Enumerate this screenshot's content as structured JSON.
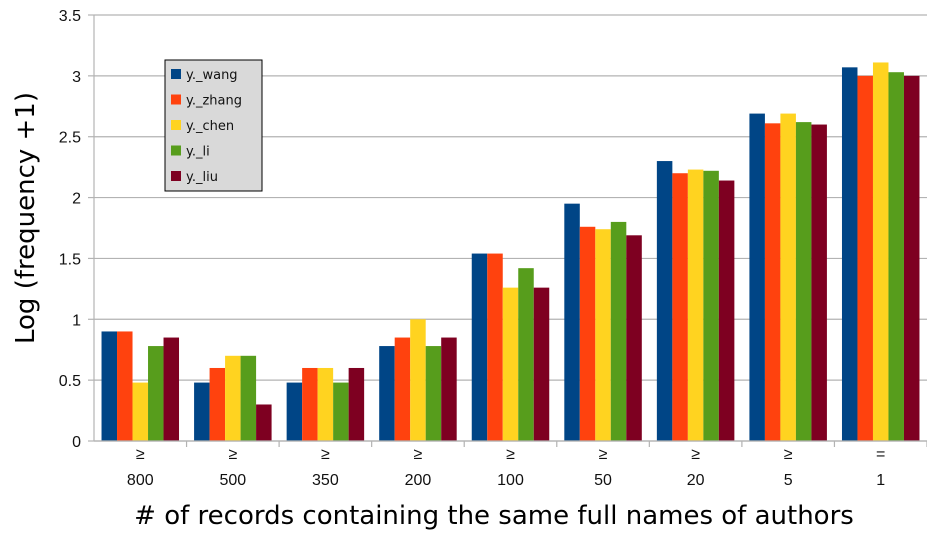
{
  "chart_data": {
    "type": "bar",
    "xlabel": "# of records containing the same full names of authors",
    "ylabel": "Log (frequency +1)",
    "ylim": [
      0,
      3.5
    ],
    "yticks": [
      "0",
      "0.5",
      "1",
      "1.5",
      "2",
      "2.5",
      "3",
      "3.5"
    ],
    "grid": "horizontal",
    "legend_position": "top-left",
    "categories": [
      {
        "symbol": "≥",
        "value": "800"
      },
      {
        "symbol": "≥",
        "value": "500"
      },
      {
        "symbol": "≥",
        "value": "350"
      },
      {
        "symbol": "≥",
        "value": "200"
      },
      {
        "symbol": "≥",
        "value": "100"
      },
      {
        "symbol": "≥",
        "value": "50"
      },
      {
        "symbol": "≥",
        "value": "20"
      },
      {
        "symbol": "≥",
        "value": "5"
      },
      {
        "symbol": "=",
        "value": "1"
      }
    ],
    "series": [
      {
        "name": "y._wang",
        "color": "#004586",
        "values": [
          0.9,
          0.48,
          0.48,
          0.78,
          1.54,
          1.95,
          2.3,
          2.69,
          3.07
        ]
      },
      {
        "name": "y._zhang",
        "color": "#FF420E",
        "values": [
          0.9,
          0.6,
          0.6,
          0.85,
          1.54,
          1.76,
          2.2,
          2.61,
          3.0
        ]
      },
      {
        "name": "y._chen",
        "color": "#FFD320",
        "values": [
          0.48,
          0.7,
          0.6,
          1.0,
          1.26,
          1.74,
          2.23,
          2.69,
          3.11
        ]
      },
      {
        "name": "y._li",
        "color": "#579D1C",
        "values": [
          0.78,
          0.7,
          0.48,
          0.78,
          1.42,
          1.8,
          2.22,
          2.62,
          3.03
        ]
      },
      {
        "name": "y._liu",
        "color": "#7E0021",
        "values": [
          0.85,
          0.3,
          0.6,
          0.85,
          1.26,
          1.69,
          2.14,
          2.6,
          3.0
        ]
      }
    ]
  }
}
